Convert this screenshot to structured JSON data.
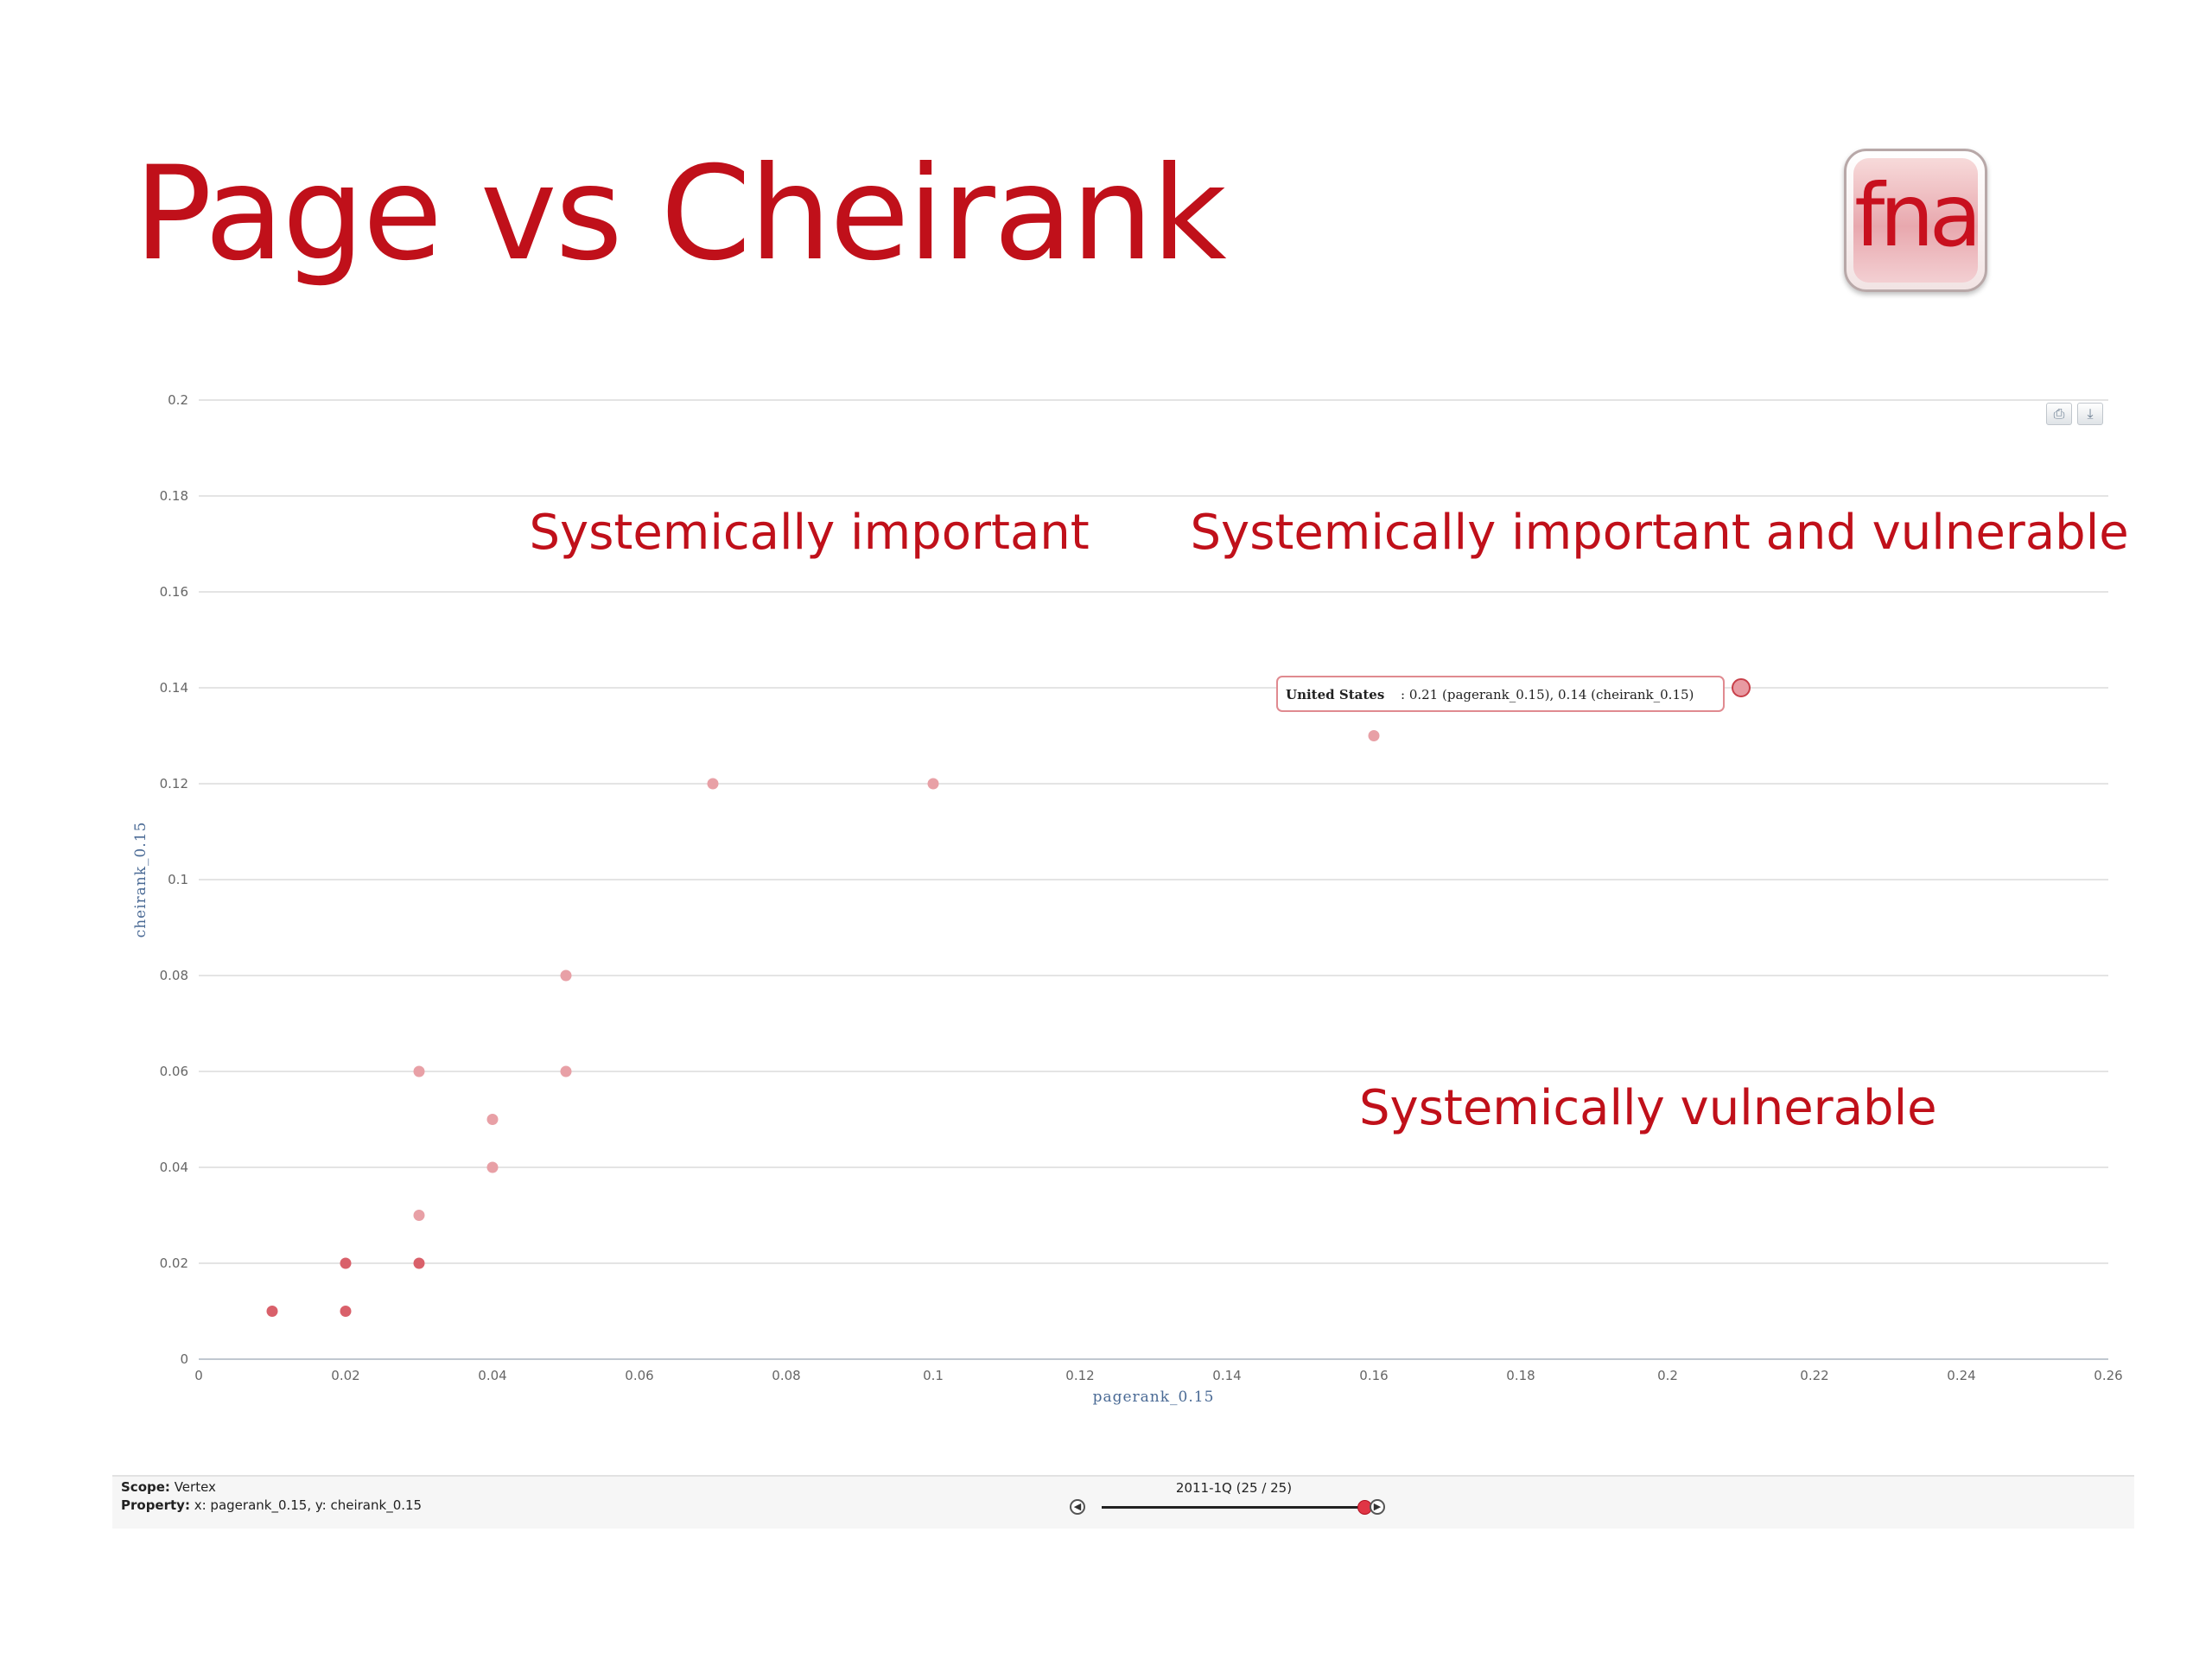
{
  "slide": {
    "title": "Page vs Cheirank",
    "logo_text": "fna",
    "accent_color": "#c0101a"
  },
  "chart_data": {
    "type": "scatter",
    "xlabel": "pagerank_0.15",
    "ylabel": "cheirank_0.15",
    "xlim": [
      0,
      0.26
    ],
    "ylim": [
      0,
      0.2
    ],
    "x_ticks": [
      "0",
      "0.02",
      "0.04",
      "0.06",
      "0.08",
      "0.1",
      "0.12",
      "0.14",
      "0.16",
      "0.18",
      "0.2",
      "0.22",
      "0.24",
      "0.26"
    ],
    "y_ticks": [
      "0",
      "0.02",
      "0.04",
      "0.06",
      "0.08",
      "0.1",
      "0.12",
      "0.14",
      "0.16",
      "0.18",
      "0.2"
    ],
    "grid": "horizontal",
    "point_color": "#e8a0a6",
    "points": [
      {
        "x": 0.01,
        "y": 0.01,
        "count": 2
      },
      {
        "x": 0.02,
        "y": 0.01,
        "count": 2
      },
      {
        "x": 0.02,
        "y": 0.02,
        "count": 2
      },
      {
        "x": 0.03,
        "y": 0.02,
        "count": 2
      },
      {
        "x": 0.03,
        "y": 0.03,
        "count": 1
      },
      {
        "x": 0.03,
        "y": 0.06,
        "count": 1
      },
      {
        "x": 0.04,
        "y": 0.04,
        "count": 1
      },
      {
        "x": 0.04,
        "y": 0.05,
        "count": 1
      },
      {
        "x": 0.05,
        "y": 0.06,
        "count": 1
      },
      {
        "x": 0.05,
        "y": 0.08,
        "count": 1
      },
      {
        "x": 0.07,
        "y": 0.12,
        "count": 1
      },
      {
        "x": 0.1,
        "y": 0.12,
        "count": 1
      },
      {
        "x": 0.16,
        "y": 0.13,
        "count": 1
      },
      {
        "x": 0.21,
        "y": 0.14,
        "count": 1,
        "highlighted": true
      }
    ],
    "annotations": [
      {
        "text": "Systemically important",
        "x": 0.045,
        "y": 0.169
      },
      {
        "text": "Systemically important and vulnerable",
        "x": 0.135,
        "y": 0.169
      },
      {
        "text": "Systemically vulnerable",
        "x": 0.158,
        "y": 0.049
      }
    ],
    "tooltip": {
      "name": "United States",
      "value_text": ": 0.21 (pagerank_0.15), 0.14 (cheirank_0.15)"
    }
  },
  "toolbar": {
    "print_icon": "printer-icon",
    "download_icon": "download-icon"
  },
  "footer": {
    "scope_label": "Scope:",
    "scope_value": "Vertex",
    "property_label": "Property:",
    "property_value": "x: pagerank_0.15, y: cheirank_0.15",
    "period_label": "2011-1Q (25 / 25)",
    "slider_value": 1.0
  }
}
